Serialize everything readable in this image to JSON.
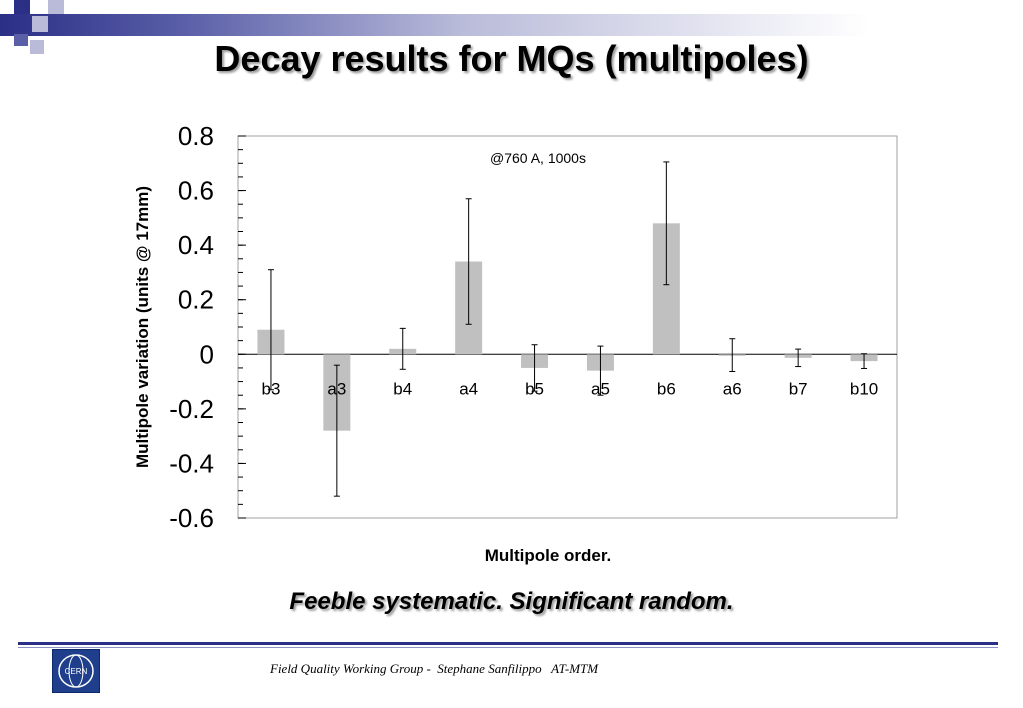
{
  "slide": {
    "title": "Decay results for MQs (multipoles)",
    "subtitle": "Feeble systematic. Significant random.",
    "footer": "Field Quality Working Group -  Stephane Sanfilippo   AT-MTM",
    "logo_text": "CERN",
    "colors": {
      "accent": "#2b2f86",
      "logo": "#1f3f8c"
    }
  },
  "chart_data": {
    "type": "bar",
    "title": "",
    "annotation": "@760 A, 1000s",
    "xlabel": "Multipole order.",
    "ylabel": "Multipole variation (units @ 17mm)",
    "ylim": [
      -0.6,
      0.8
    ],
    "yticks": [
      0.8,
      0.6,
      0.4,
      0.2,
      0,
      -0.2,
      -0.4,
      -0.6
    ],
    "ytick_labels": [
      "0.8",
      "0.6",
      "0.4",
      "0.2",
      "0",
      "-0.2",
      "-0.4",
      "-0.6"
    ],
    "categories": [
      "b3",
      "a3",
      "b4",
      "a4",
      "b5",
      "a5",
      "b6",
      "a6",
      "b7",
      "b10"
    ],
    "values": [
      0.09,
      -0.28,
      0.02,
      0.34,
      -0.05,
      -0.06,
      0.48,
      -0.003,
      -0.013,
      -0.025
    ],
    "errors": [
      0.22,
      0.24,
      0.075,
      0.23,
      0.085,
      0.09,
      0.225,
      0.06,
      0.032,
      0.027
    ],
    "bar_color": "#c0c0c0",
    "grid": false
  }
}
